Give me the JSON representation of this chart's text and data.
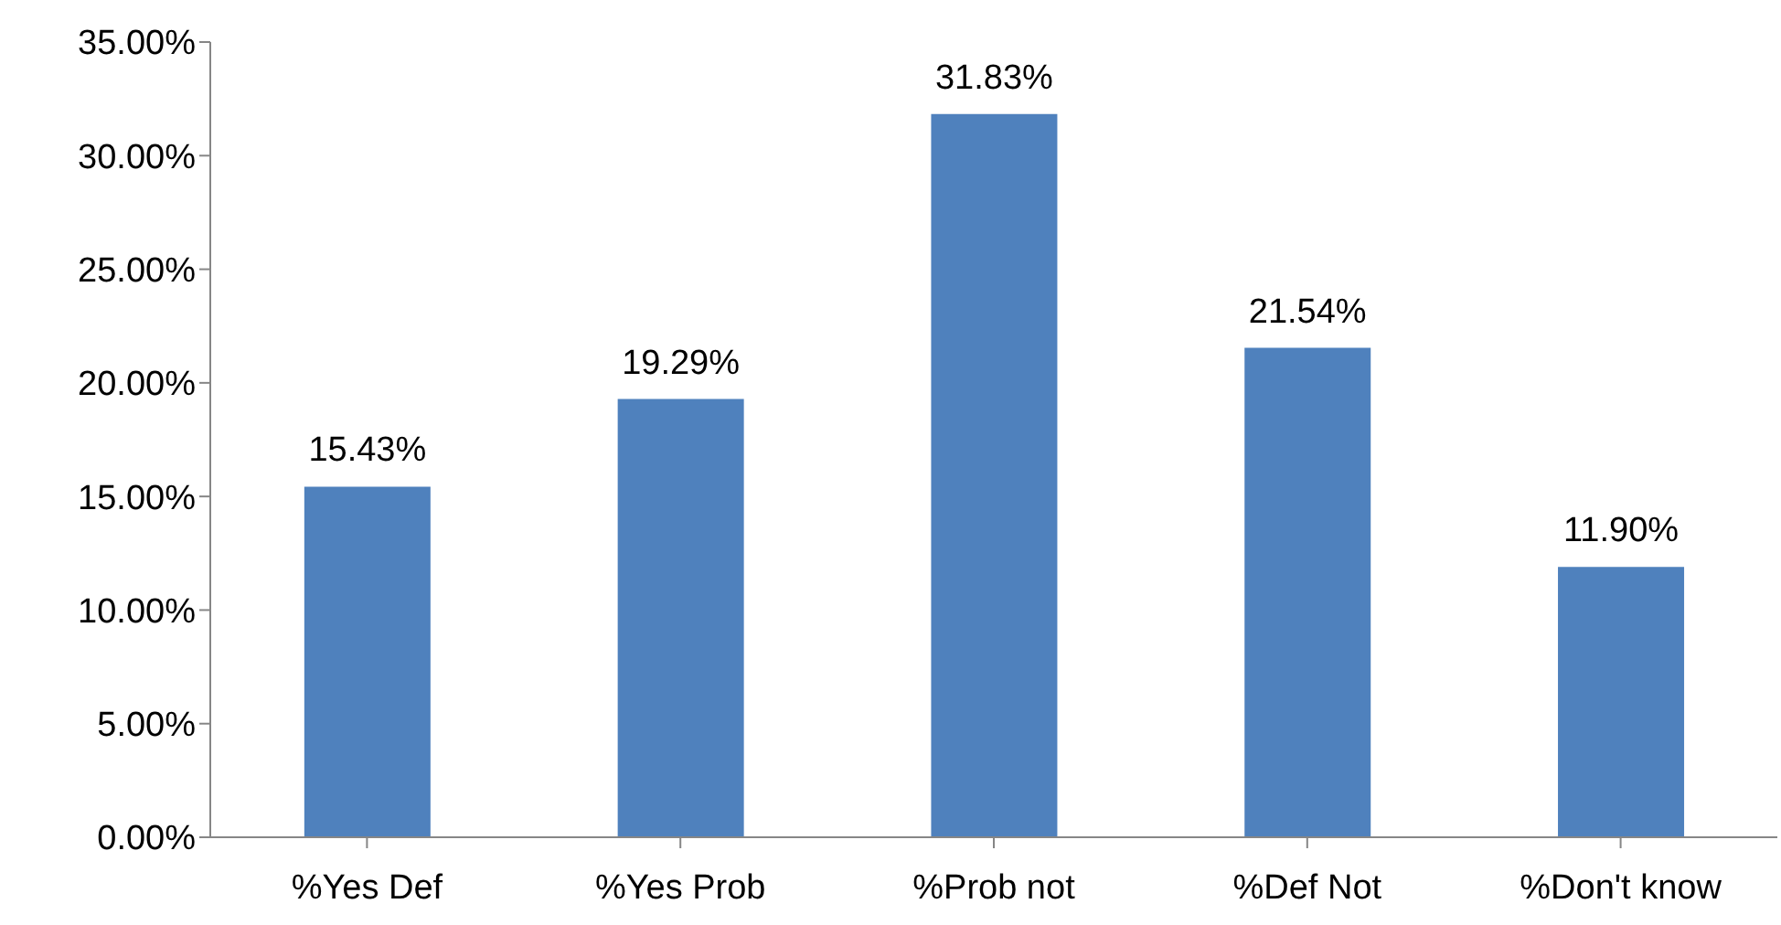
{
  "chart_data": {
    "type": "bar",
    "categories": [
      "%Yes Def",
      "%Yes Prob",
      "%Prob not",
      "%Def Not",
      "%Don't know"
    ],
    "values": [
      15.43,
      19.29,
      31.83,
      21.54,
      11.9
    ],
    "value_labels": [
      "15.43%",
      "19.29%",
      "31.83%",
      "21.54%",
      "11.90%"
    ],
    "color": "#4f81bd",
    "ylim": [
      0,
      35
    ],
    "yticks": [
      {
        "value": 0,
        "label": "0.00%"
      },
      {
        "value": 5,
        "label": "5.00%"
      },
      {
        "value": 10,
        "label": "10.00%"
      },
      {
        "value": 15,
        "label": "15.00%"
      },
      {
        "value": 20,
        "label": "20.00%"
      },
      {
        "value": 25,
        "label": "25.00%"
      },
      {
        "value": 30,
        "label": "30.00%"
      },
      {
        "value": 35,
        "label": "35.00%"
      }
    ],
    "grid": false,
    "legend": false
  }
}
